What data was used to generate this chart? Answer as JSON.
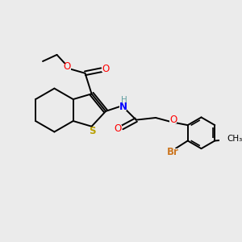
{
  "bg_color": "#ebebeb",
  "bond_lw": 1.4,
  "figsize": [
    3.0,
    3.0
  ],
  "dpi": 100,
  "xlim": [
    0,
    10
  ],
  "ylim": [
    0,
    10
  ]
}
